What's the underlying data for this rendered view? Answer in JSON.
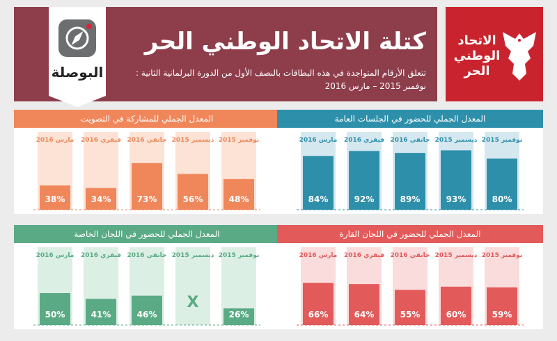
{
  "header": {
    "title": "كتلة الاتحاد الوطني الحر",
    "subtitle": "تتعلق الأرقام المتواجدة في هذه البطاقات بالنصف الأول من الدورة البرلمانية الثانية :",
    "dates": "نوفمبر 2015 – مارس 2016",
    "site_logo_text": "البوصلة",
    "party_logo_text": "الاتحاد الوطني الحر"
  },
  "colors": {
    "header_bg": "#8e3d4b",
    "party_red": "#c9242e",
    "voting": "#f0875a",
    "public_sessions": "#2e8fab",
    "special_committees": "#5aab85",
    "standing_committees": "#e35a5a"
  },
  "icons": [
    "compass-icon",
    "eagle-icon"
  ],
  "chart_data": [
    {
      "id": "voting",
      "type": "bar",
      "title": "المعدل الجملي للمشاركة في التصويت",
      "categories": [
        "نوفمبر 2015",
        "ديسمبر 2015",
        "جانفي 2016",
        "فيفري 2016",
        "مارس 2016"
      ],
      "values": [
        48,
        56,
        73,
        34,
        38
      ],
      "labels": [
        "48%",
        "56%",
        "73%",
        "34%",
        "38%"
      ],
      "ylim": [
        0,
        100
      ],
      "bar_color": "#f0875a",
      "col_color": "#fce3d6"
    },
    {
      "id": "public_sessions",
      "type": "bar",
      "title": "المعدل الجملي للحضور في الجلسات العامة",
      "categories": [
        "نوفمبر 2015",
        "ديسمبر 2015",
        "جانفي 2016",
        "فيفري 2016",
        "مارس 2016"
      ],
      "values": [
        80,
        93,
        89,
        92,
        84
      ],
      "labels": [
        "80%",
        "93%",
        "89%",
        "92%",
        "84%"
      ],
      "ylim": [
        0,
        100
      ],
      "bar_color": "#2e8fab",
      "col_color": "#d6e8ef"
    },
    {
      "id": "special_committees",
      "type": "bar",
      "title": "المعدل الجملي للحضور في اللجان الخاصة",
      "categories": [
        "نوفمبر 2015",
        "ديسمبر 2015",
        "جانفي 2016",
        "فيفري 2016",
        "مارس 2016"
      ],
      "values": [
        26,
        null,
        46,
        41,
        50
      ],
      "labels": [
        "26%",
        "X",
        "46%",
        "41%",
        "50%"
      ],
      "ylim": [
        0,
        100
      ],
      "bar_color": "#5aab85",
      "col_color": "#dcefe4"
    },
    {
      "id": "standing_committees",
      "type": "bar",
      "title": "المعدل الجملي للحضور في اللجان القارة",
      "categories": [
        "نوفمبر 2015",
        "ديسمبر 2015",
        "جانفي 2016",
        "فيفري 2016",
        "مارس 2016"
      ],
      "values": [
        59,
        60,
        55,
        64,
        66
      ],
      "labels": [
        "59%",
        "60%",
        "55%",
        "64%",
        "66%"
      ],
      "ylim": [
        0,
        100
      ],
      "bar_color": "#e35a5a",
      "col_color": "#fadcdc"
    }
  ]
}
